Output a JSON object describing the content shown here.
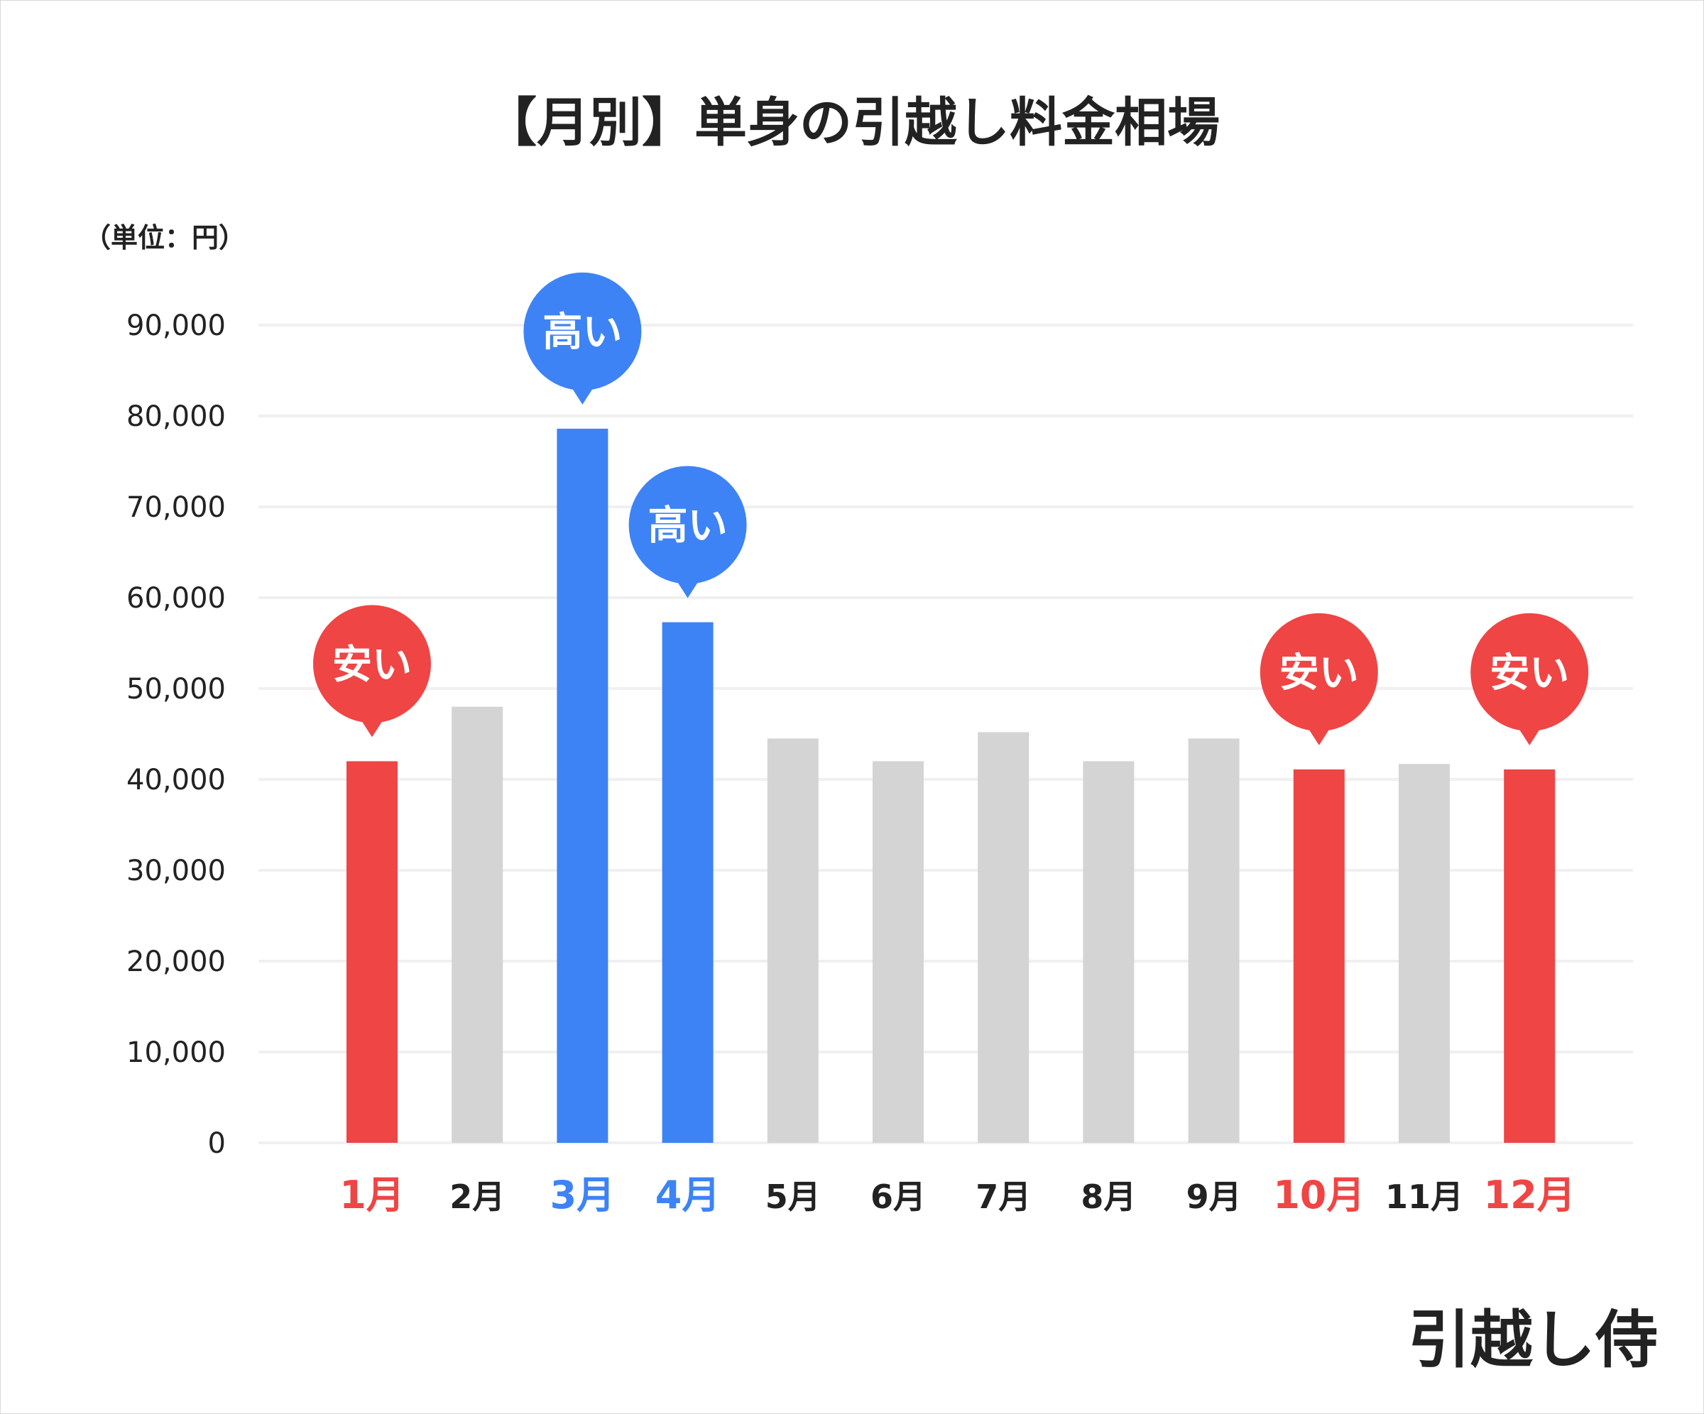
{
  "chart_data": {
    "type": "bar",
    "title": "【月別】単身の引越し料金相場",
    "unit_label": "（単位：円）",
    "categories": [
      "1月",
      "2月",
      "3月",
      "4月",
      "5月",
      "6月",
      "7月",
      "8月",
      "9月",
      "10月",
      "11月",
      "12月"
    ],
    "values": [
      42000,
      48000,
      78600,
      57300,
      44500,
      42000,
      45200,
      42000,
      44500,
      41100,
      41700,
      41100
    ],
    "highlight": [
      "low",
      "none",
      "high",
      "high",
      "none",
      "none",
      "none",
      "none",
      "none",
      "low",
      "none",
      "low"
    ],
    "ylim": [
      0,
      90000
    ],
    "yticks": [
      0,
      10000,
      20000,
      30000,
      40000,
      50000,
      60000,
      70000,
      80000,
      90000
    ],
    "ytick_labels": [
      "0",
      "10,000",
      "20,000",
      "30,000",
      "40,000",
      "50,000",
      "60,000",
      "70,000",
      "80,000",
      "90,000"
    ],
    "grid": true,
    "annotations": {
      "high": "高い",
      "low": "安い"
    },
    "colors": {
      "high": "#3d83f5",
      "low": "#ef4545",
      "none": "#d4d4d4",
      "grid": "#f0f0f0",
      "text": "#222222"
    }
  },
  "logo": "引越し侍"
}
